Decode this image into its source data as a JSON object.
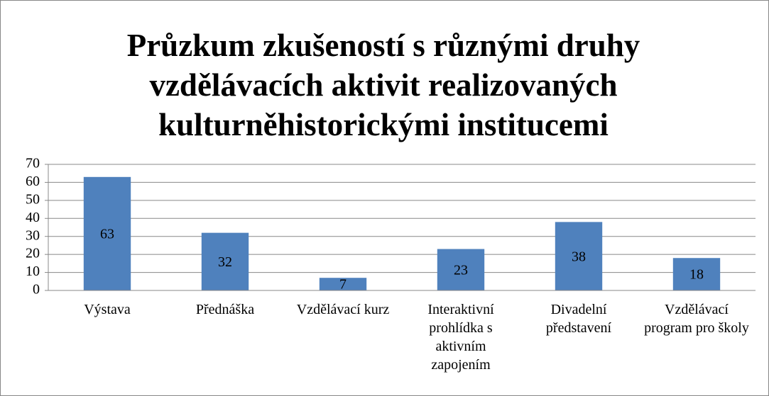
{
  "chart_data": {
    "type": "bar",
    "title": "Průzkum zkušeností s různými druhy vzdělávacích aktivit realizovaných kulturněhistorickými institucemi",
    "categories": [
      "Výstava",
      "Přednáška",
      "Vzdělávací kurz",
      "Interaktivní prohlídka s aktivním zapojením",
      "Divadelní představení",
      "Vzdělávací program pro školy"
    ],
    "values": [
      63,
      32,
      7,
      23,
      38,
      18
    ],
    "color": "#4f81bd",
    "ylim": [
      0,
      70
    ],
    "yticks": [
      0,
      10,
      20,
      30,
      40,
      50,
      60,
      70
    ],
    "grid": true
  }
}
